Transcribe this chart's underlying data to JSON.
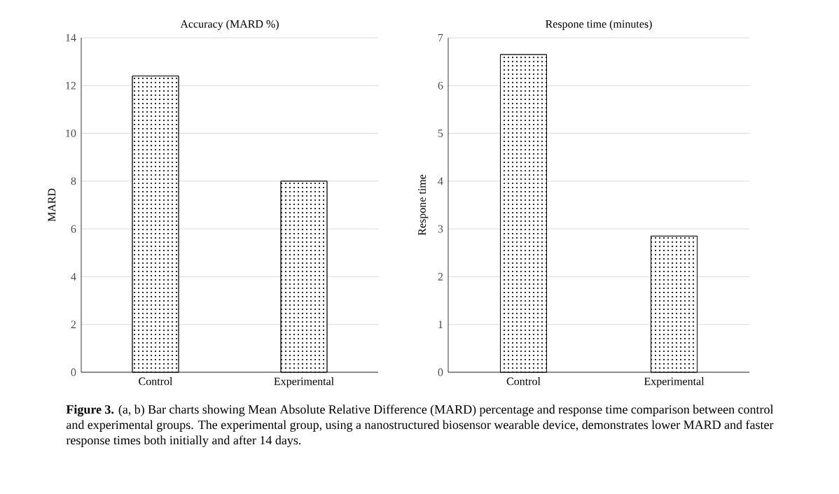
{
  "chart_data": [
    {
      "type": "bar",
      "title": "Accuracy (MARD %)",
      "ylabel": "MARD",
      "categories": [
        "Control",
        "Experimental"
      ],
      "values": [
        12.4,
        8.0
      ],
      "color": "#ffffff",
      "ylim": [
        0,
        14
      ],
      "yticks": [
        0,
        2,
        4,
        6,
        8,
        10,
        12,
        14
      ],
      "grid": "y",
      "annotations": [
        "**Figure 3.** (a, b) Bar charts showing Mean Absolute Relative Difference (MARD) percentage and response time comparison between control and experimental groups. The experimental group, using a nanostructured biosensor wearable device, demonstrates lower MARD and faster response times both initially and after 14 days."
      ]
    },
    {
      "type": "bar",
      "title": "Respone time (minutes)",
      "ylabel": "Respone time",
      "categories": [
        "Control",
        "Experimental"
      ],
      "values": [
        6.65,
        2.85
      ],
      "color": "#ffffff",
      "ylim": [
        0,
        7
      ],
      "yticks": [
        0,
        1,
        2,
        3,
        4,
        5,
        6,
        7
      ],
      "grid": "y"
    }
  ]
}
